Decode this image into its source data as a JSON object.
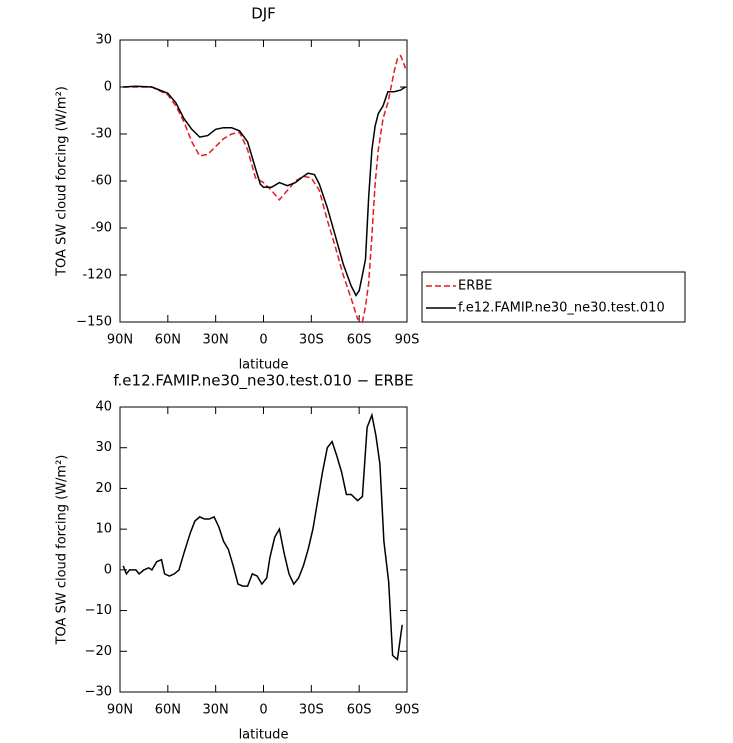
{
  "chart_data": [
    {
      "type": "line",
      "title": "DJF",
      "xlabel": "latitude",
      "ylabel": "TOA SW cloud forcing (W/m²)",
      "xlim": [
        90,
        -90
      ],
      "ylim": [
        -150,
        30
      ],
      "xticks": [
        {
          "value": 90,
          "label": "90N"
        },
        {
          "value": 60,
          "label": "60N"
        },
        {
          "value": 30,
          "label": "30N"
        },
        0,
        {
          "value": -30,
          "label": "30S"
        },
        {
          "value": -60,
          "label": "60S"
        },
        {
          "value": -90,
          "label": "90S"
        }
      ],
      "yticks": [
        30,
        0,
        -30,
        -60,
        -90,
        -120,
        {
          "value": -150,
          "label": "−150"
        }
      ],
      "legend": "right",
      "series": [
        {
          "name": "ERBE",
          "color": "#e41a1c",
          "line_style": "dashed",
          "x": [
            88,
            80,
            70,
            60,
            55,
            50,
            45,
            40,
            35,
            30,
            25,
            20,
            15,
            10,
            5,
            0,
            -5,
            -10,
            -15,
            -20,
            -25,
            -30,
            -35,
            -40,
            -45,
            -50,
            -55,
            -59,
            -62,
            -64,
            -66,
            -68,
            -70,
            -72,
            -75,
            -78,
            -80,
            -82,
            -84,
            -86,
            -88,
            -89
          ],
          "values": [
            0,
            0,
            0,
            -5,
            -12,
            -22,
            -35,
            -44,
            -43,
            -38,
            -33,
            -30,
            -29,
            -40,
            -58,
            -61,
            -66,
            -72,
            -66,
            -60,
            -57,
            -58,
            -66,
            -85,
            -102,
            -120,
            -135,
            -148,
            -150,
            -140,
            -125,
            -95,
            -62,
            -40,
            -20,
            -10,
            0,
            10,
            18,
            20,
            15,
            12
          ]
        },
        {
          "name": "f.e12.FAMIP.ne30_ne30.test.010",
          "color": "#000000",
          "line_style": "solid",
          "x": [
            88,
            80,
            70,
            60,
            55,
            50,
            45,
            40,
            35,
            30,
            25,
            20,
            15,
            10,
            5,
            2,
            0,
            -5,
            -10,
            -15,
            -20,
            -25,
            -28,
            -32,
            -35,
            -40,
            -45,
            -50,
            -55,
            -58,
            -60,
            -62,
            -64,
            -66,
            -68,
            -70,
            -72,
            -75,
            -78,
            -82,
            -86,
            -89
          ],
          "values": [
            0,
            0.5,
            0,
            -4,
            -10,
            -20,
            -27,
            -32,
            -31,
            -27,
            -26,
            -26,
            -28,
            -35,
            -52,
            -62,
            -64,
            -64,
            -61,
            -63,
            -61,
            -57,
            -55,
            -56,
            -62,
            -77,
            -95,
            -113,
            -127,
            -133,
            -130,
            -120,
            -110,
            -70,
            -40,
            -25,
            -17,
            -12,
            -3,
            -3,
            -2,
            0
          ]
        }
      ]
    },
    {
      "type": "line",
      "title": "f.e12.FAMIP.ne30_ne30.test.010 − ERBE",
      "xlabel": "latitude",
      "ylabel": "TOA SW cloud forcing (W/m²)",
      "xlim": [
        90,
        -90
      ],
      "ylim": [
        -30,
        40
      ],
      "xticks": [
        {
          "value": 90,
          "label": "90N"
        },
        {
          "value": 60,
          "label": "60N"
        },
        {
          "value": 30,
          "label": "30N"
        },
        0,
        {
          "value": -30,
          "label": "30S"
        },
        {
          "value": -60,
          "label": "60S"
        },
        {
          "value": -90,
          "label": "90S"
        }
      ],
      "yticks": [
        40,
        30,
        20,
        10,
        0,
        {
          "value": -10,
          "label": "−10"
        },
        {
          "value": -20,
          "label": "−20"
        },
        {
          "value": -30,
          "label": "−30"
        }
      ],
      "series": [
        {
          "color": "#000000",
          "line_style": "solid",
          "x": [
            88,
            86,
            84,
            80,
            78,
            75,
            72,
            70,
            67,
            64,
            62,
            59,
            56,
            53,
            50,
            46,
            43,
            40,
            37,
            34,
            31,
            28,
            25,
            22,
            19,
            16,
            13,
            10,
            7,
            4,
            1,
            -2,
            -4,
            -7,
            -10,
            -13,
            -16,
            -19,
            -22,
            -25,
            -28,
            -31,
            -34,
            -37,
            -40,
            -43,
            -46,
            -49,
            -52,
            -55,
            -59,
            -62,
            -65,
            -68,
            -70.5,
            -73,
            -75.5,
            -78.5,
            -81,
            -84,
            -87
          ],
          "values": [
            1,
            -1,
            0,
            0,
            -1,
            0,
            0.5,
            0,
            2,
            2.5,
            -1,
            -1.5,
            -1,
            0,
            4,
            9,
            12,
            13,
            12.5,
            12.5,
            13,
            10.5,
            7,
            5,
            1,
            -3.5,
            -4,
            -4,
            -1,
            -1.5,
            -3.5,
            -2,
            3,
            8,
            10,
            4,
            -1,
            -3.5,
            -2,
            1,
            5,
            10,
            17,
            24,
            30,
            31.5,
            28,
            24,
            18.5,
            18.5,
            17,
            18,
            35,
            38,
            33,
            26,
            7,
            -3,
            -21,
            -22,
            -13.5
          ]
        }
      ]
    }
  ]
}
